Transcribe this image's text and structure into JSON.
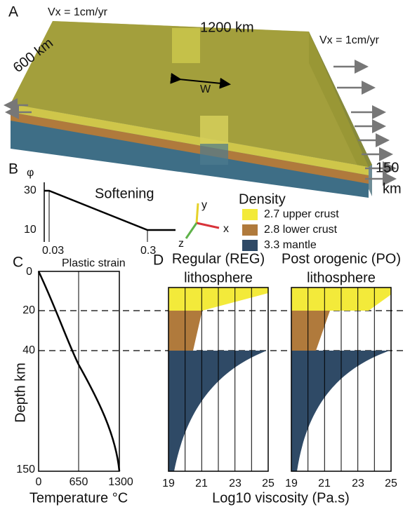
{
  "panel_a": {
    "label": "A",
    "velocity_left": "Vx = 1cm/yr",
    "velocity_right": "Vx = 1cm/yr",
    "length": "1200 km",
    "width": "600 km",
    "weakness": "W",
    "depth_value": "150",
    "depth_unit": "km"
  },
  "panel_b": {
    "label": "B",
    "y_symbol": "φ",
    "yticks": [
      "30",
      "10"
    ],
    "curve_label": "Softening",
    "xticks": [
      "0.03",
      "0.3"
    ],
    "x_label": "Plastic strain"
  },
  "axes_triad": {
    "y": "y",
    "x": "x",
    "z": "z"
  },
  "legend": {
    "title": "Density",
    "items": [
      "2.7 upper crust",
      "2.8 lower crust",
      "3.3 mantle"
    ]
  },
  "panel_c": {
    "label": "C",
    "y_label": "Depth km",
    "yticks": [
      "0",
      "20",
      "40",
      "150"
    ],
    "xticks": [
      "0",
      "650",
      "1300"
    ],
    "x_label": "Temperature °C"
  },
  "panel_d": {
    "label": "D",
    "left_title": [
      "Regular (REG)",
      "lithosphere"
    ],
    "right_title": [
      "Post orogenic (PO)",
      "lithosphere"
    ],
    "left_xticks": [
      "19",
      "21",
      "23",
      "25"
    ],
    "right_xticks": [
      "19",
      "21",
      "23",
      "25"
    ],
    "x_label": "Log10 viscosity (Pa.s)"
  }
}
